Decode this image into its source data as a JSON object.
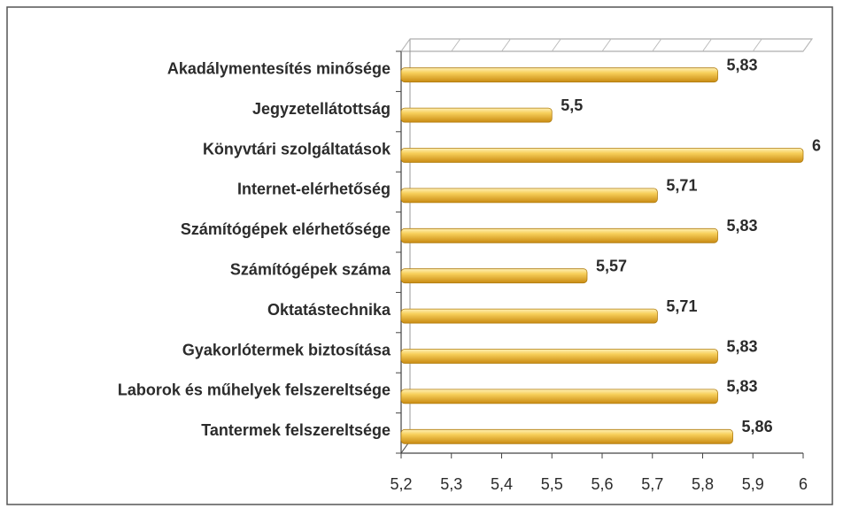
{
  "chart_data": {
    "type": "bar",
    "orientation": "horizontal",
    "categories": [
      "Akadálymentesítés minősége",
      "Jegyzetellátottság",
      "Könyvtári szolgáltatások",
      "Internet-elérhetőség",
      "Számítógépek elérhetősége",
      "Számítógépek száma",
      "Oktatástechnika",
      "Gyakorlótermek biztosítása",
      "Laborok és műhelyek felszereltsége",
      "Tantermek felszereltsége"
    ],
    "values": [
      5.83,
      5.5,
      6,
      5.71,
      5.83,
      5.57,
      5.71,
      5.83,
      5.83,
      5.86
    ],
    "value_labels": [
      "5,83",
      "5,5",
      "6",
      "5,71",
      "5,83",
      "5,57",
      "5,71",
      "5,83",
      "5,83",
      "5,86"
    ],
    "color": "#f2c14e",
    "xlim": [
      5.2,
      6
    ],
    "xticks": [
      {
        "value": 5.2,
        "label": "5,2"
      },
      {
        "value": 5.3,
        "label": "5,3"
      },
      {
        "value": 5.4,
        "label": "5,4"
      },
      {
        "value": 5.5,
        "label": "5,5"
      },
      {
        "value": 5.6,
        "label": "5,6"
      },
      {
        "value": 5.7,
        "label": "5,7"
      },
      {
        "value": 5.8,
        "label": "5,8"
      },
      {
        "value": 5.9,
        "label": "5,9"
      },
      6
    ],
    "grid": false
  }
}
